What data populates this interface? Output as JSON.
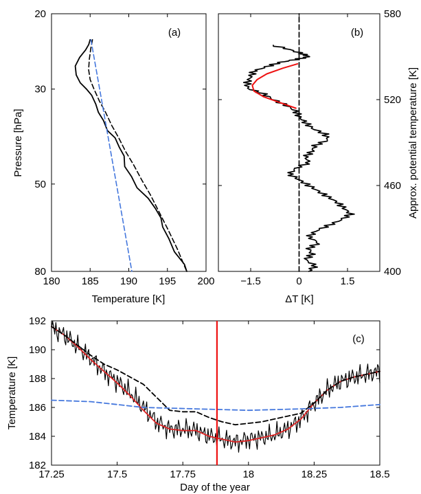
{
  "chart_data": [
    {
      "panel": "(a)",
      "type": "line",
      "xlabel": "Temperature [K]",
      "ylabel": "Pressure [hPa]",
      "xlim": [
        180,
        200
      ],
      "ylim": [
        80,
        20
      ],
      "yscale": "log",
      "xticks": [
        180,
        185,
        190,
        195,
        200
      ],
      "yticks": [
        20,
        30,
        50,
        80
      ],
      "grid": false,
      "series": [
        {
          "style": "solid",
          "color": "#000000",
          "x": [
            185.0,
            184.6,
            184.2,
            183.6,
            183.3,
            183.4,
            183.8,
            184.3,
            185.0,
            185.6,
            186.3,
            186.9,
            187.4,
            188.0,
            188.6,
            189.2,
            189.7,
            190.5,
            191.3,
            192.3,
            193.3,
            193.9,
            194.6,
            195.3,
            196.2,
            197.0,
            197.4
          ],
          "y": [
            23.0,
            23.6,
            24.3,
            25.3,
            26.5,
            27.8,
            29.0,
            30.0,
            31.0,
            32.5,
            34.0,
            35.5,
            37.5,
            39.0,
            41.0,
            43.0,
            45.5,
            48.0,
            51.0,
            54.0,
            57.0,
            60.0,
            63.0,
            67.0,
            72.0,
            77.0,
            80.0
          ]
        },
        {
          "style": "dashed",
          "color": "#000000",
          "x": [
            185.3,
            185.1,
            184.9,
            184.8,
            185.0,
            185.5,
            186.2,
            187.0,
            187.8,
            188.7,
            189.6,
            190.6,
            191.7,
            192.8,
            193.9,
            195.1,
            196.3,
            197.5
          ],
          "y": [
            23.0,
            24.0,
            25.5,
            27.0,
            28.5,
            30.0,
            32.0,
            34.0,
            36.5,
            39.0,
            42.0,
            45.0,
            49.0,
            53.0,
            58.0,
            64.0,
            71.0,
            80.0
          ]
        },
        {
          "style": "dashed",
          "color": "#4477dd",
          "x": [
            185.1,
            190.4
          ],
          "y": [
            23.0,
            80.0
          ]
        }
      ]
    },
    {
      "panel": "(b)",
      "type": "line",
      "xlabel": "ΔT [K]",
      "ylabel_right": "Approx. potential temperature [K]",
      "xlim": [
        -2.5,
        2.5
      ],
      "ylim": [
        400,
        580
      ],
      "xticks": [
        -1.5,
        0,
        1.5
      ],
      "xtick_labels": [
        "−1.5",
        "0",
        "1.5"
      ],
      "yticks_right": [
        400,
        460,
        520,
        580
      ],
      "grid": false,
      "series": [
        {
          "style": "solid",
          "color": "#000000",
          "y": [
            400,
            404,
            408,
            412,
            416,
            420,
            424,
            428,
            432,
            436,
            440,
            444,
            448,
            452,
            456,
            460,
            464,
            468,
            472,
            476,
            480,
            484,
            488,
            492,
            496,
            500,
            504,
            508,
            512,
            516,
            520,
            524,
            528,
            532,
            536,
            540,
            543,
            546,
            548,
            550,
            552,
            555,
            558
          ],
          "x": [
            0.3,
            0.5,
            0.2,
            0.4,
            0.3,
            0.6,
            0.3,
            0.5,
            0.9,
            1.3,
            1.6,
            1.4,
            1.2,
            0.9,
            0.6,
            0.3,
            0.0,
            -0.3,
            -0.1,
            0.3,
            0.2,
            0.4,
            0.5,
            0.9,
            0.8,
            0.4,
            0.2,
            0.0,
            -0.1,
            -0.4,
            -0.8,
            -1.1,
            -1.6,
            -1.6,
            -1.5,
            -1.4,
            -1.0,
            -0.6,
            -0.1,
            0.3,
            0.1,
            -0.3,
            -0.8
          ]
        },
        {
          "style": "solid",
          "color": "#ee1111",
          "y": [
            514,
            518,
            522,
            526,
            530,
            534,
            538,
            542,
            545
          ],
          "x": [
            -0.1,
            -0.6,
            -1.1,
            -1.4,
            -1.45,
            -1.3,
            -1.0,
            -0.5,
            -0.05
          ]
        },
        {
          "style": "dashed",
          "color": "#000000",
          "x": [
            0,
            0
          ],
          "y": [
            400,
            580
          ]
        }
      ]
    },
    {
      "panel": "(c)",
      "type": "line",
      "xlabel": "Day of the year",
      "ylabel": "Temperature [K]",
      "xlim": [
        17.25,
        18.5
      ],
      "ylim": [
        182,
        192
      ],
      "xticks": [
        17.25,
        17.5,
        17.75,
        18,
        18.25,
        18.5
      ],
      "yticks": [
        182,
        184,
        186,
        188,
        190,
        192
      ],
      "vline": {
        "x": 17.88,
        "color": "#ee1111"
      },
      "grid": false,
      "series": [
        {
          "style": "solid",
          "color": "#000000",
          "noisy": true,
          "x": [
            17.25,
            17.3,
            17.35,
            17.4,
            17.45,
            17.5,
            17.55,
            17.6,
            17.65,
            17.7,
            17.75,
            17.8,
            17.85,
            17.9,
            17.95,
            18.0,
            18.05,
            18.1,
            18.15,
            18.2,
            18.25,
            18.3,
            18.35,
            18.4,
            18.45,
            18.5
          ],
          "y": [
            191.5,
            191.0,
            190.2,
            189.4,
            188.5,
            187.8,
            187.0,
            186.0,
            185.0,
            184.5,
            184.5,
            184.4,
            184.0,
            183.8,
            183.6,
            183.8,
            183.9,
            184.1,
            184.5,
            185.2,
            186.3,
            187.2,
            187.8,
            188.1,
            188.3,
            188.5
          ]
        },
        {
          "style": "solid",
          "color": "#dd2222",
          "x": [
            17.25,
            17.3,
            17.35,
            17.4,
            17.45,
            17.5,
            17.55,
            17.6,
            17.65,
            17.7,
            17.75,
            17.8,
            17.85,
            17.9,
            17.95,
            18.0,
            18.05,
            18.1,
            18.15,
            18.2,
            18.25,
            18.3,
            18.35,
            18.4,
            18.45,
            18.5
          ],
          "y": [
            191.6,
            191.0,
            190.2,
            189.3,
            188.5,
            187.7,
            186.8,
            185.8,
            184.9,
            184.5,
            184.4,
            184.4,
            184.0,
            183.8,
            183.6,
            183.7,
            183.9,
            184.1,
            184.5,
            185.2,
            186.3,
            187.2,
            187.8,
            188.1,
            188.3,
            188.5
          ]
        },
        {
          "style": "dashed",
          "color": "#000000",
          "x": [
            17.25,
            17.3,
            17.35,
            17.4,
            17.45,
            17.5,
            17.55,
            17.6,
            17.65,
            17.7,
            17.75,
            17.8,
            17.85,
            17.9,
            17.95,
            18.0,
            18.05,
            18.1,
            18.15,
            18.2,
            18.25,
            18.3,
            18.35,
            18.4,
            18.45,
            18.5
          ],
          "y": [
            191.6,
            191.0,
            190.3,
            189.6,
            189.0,
            188.6,
            188.1,
            187.6,
            186.7,
            185.8,
            185.7,
            185.7,
            185.3,
            185.0,
            184.8,
            184.9,
            185.0,
            185.2,
            185.4,
            185.6,
            186.3,
            187.2,
            187.8,
            188.1,
            188.3,
            188.5
          ]
        },
        {
          "style": "dashed",
          "color": "#4477dd",
          "x": [
            17.25,
            17.4,
            17.6,
            17.8,
            18.0,
            18.2,
            18.35,
            18.5
          ],
          "y": [
            186.5,
            186.4,
            186.0,
            185.9,
            185.8,
            185.9,
            186.0,
            186.2
          ]
        }
      ]
    }
  ]
}
